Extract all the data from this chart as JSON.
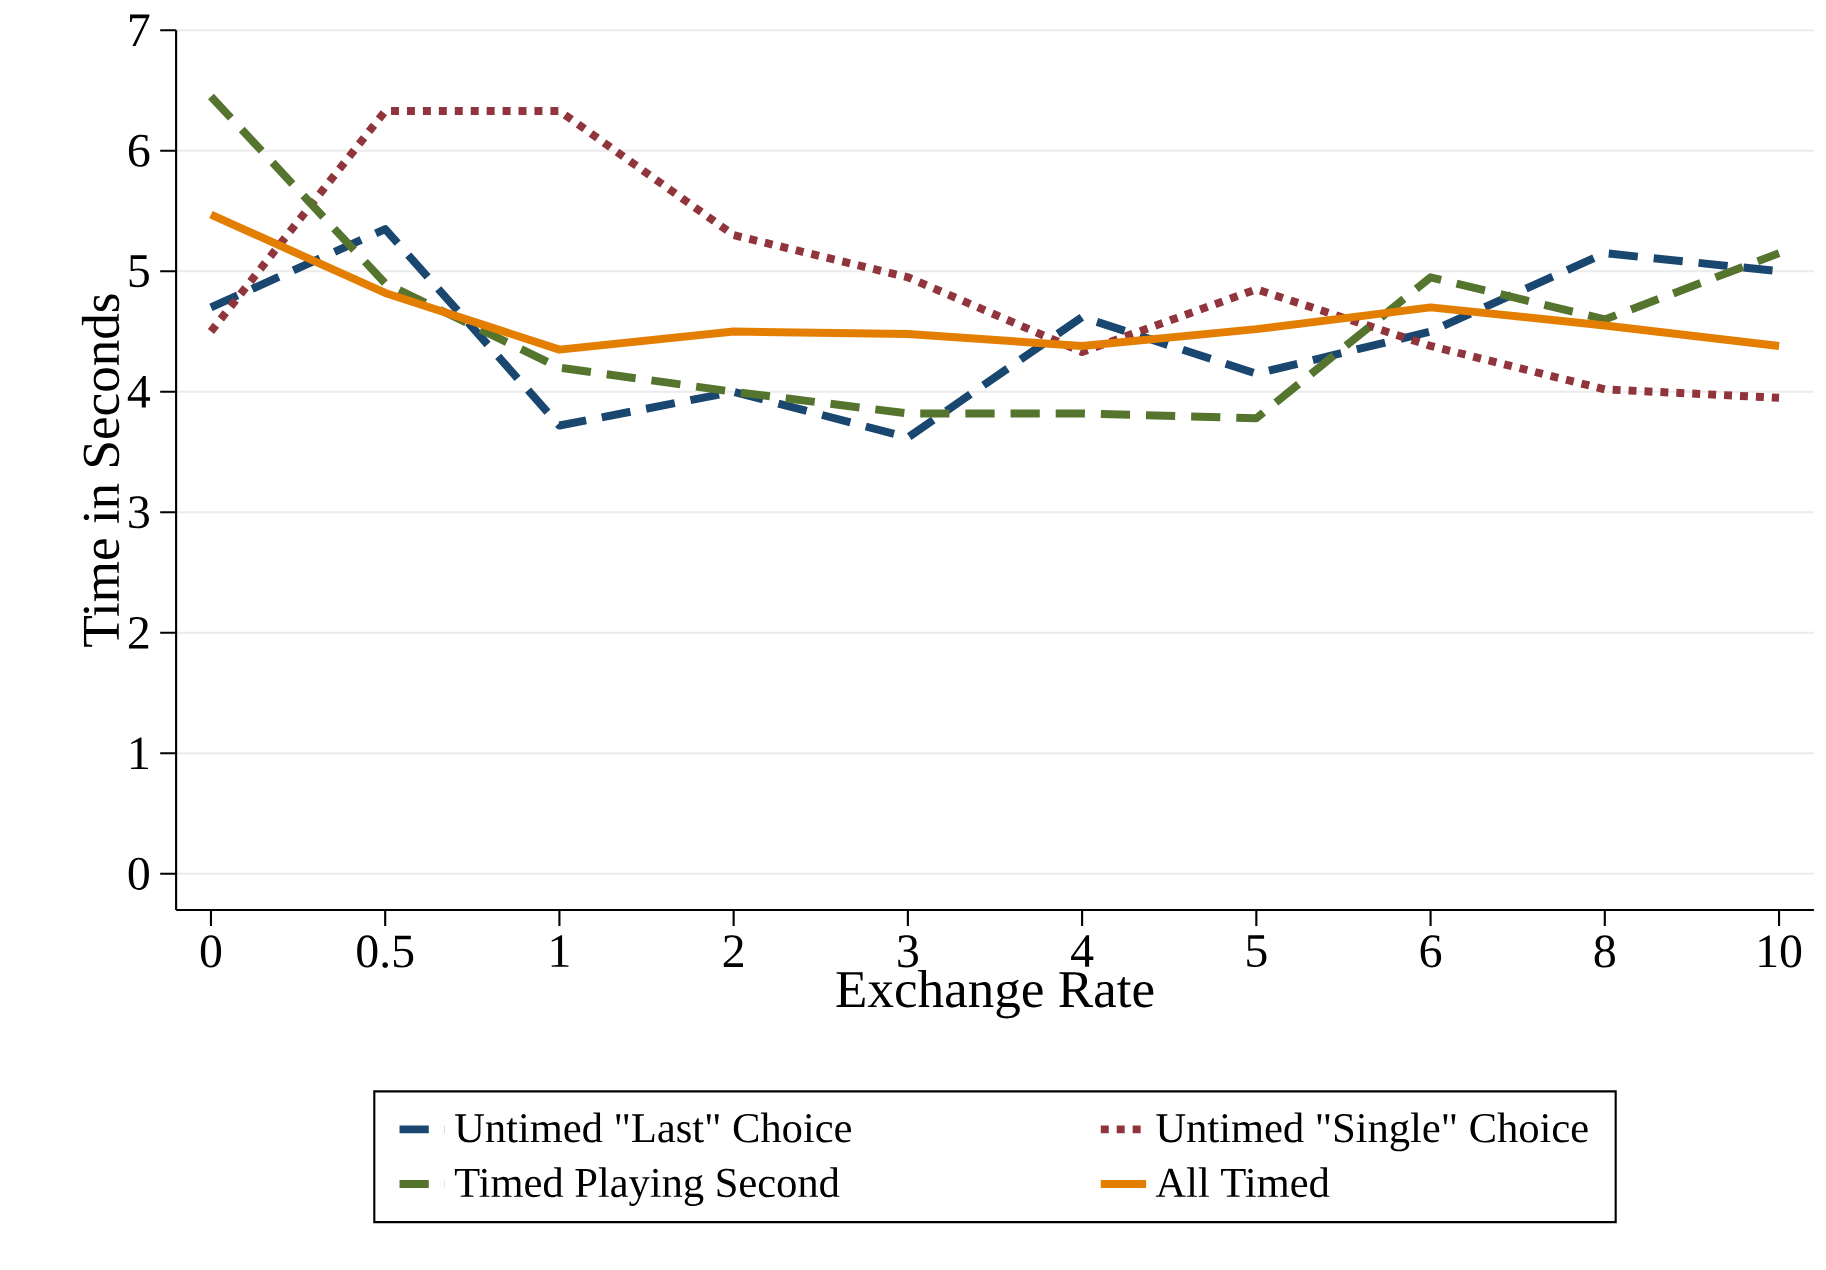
{
  "chart_data": {
    "type": "line",
    "xlabel": "Exchange Rate",
    "ylabel": "Time in Seconds",
    "categories": [
      "0",
      "0.5",
      "1",
      "2",
      "3",
      "4",
      "5",
      "6",
      "8",
      "10"
    ],
    "series": [
      {
        "name": "Untimed \"Last\" Choice",
        "color": "#1a476f",
        "line_style": "dashed",
        "values": [
          4.7,
          5.35,
          3.72,
          4.0,
          3.62,
          4.62,
          4.15,
          4.5,
          5.15,
          5.0
        ]
      },
      {
        "name": "Untimed \"Single\" Choice",
        "color": "#90353b",
        "line_style": "dotted",
        "values": [
          4.5,
          6.33,
          6.33,
          5.3,
          4.95,
          4.33,
          4.85,
          4.38,
          4.02,
          3.95
        ]
      },
      {
        "name": "Timed Playing Second",
        "color": "#55752f",
        "line_style": "dashed",
        "values": [
          6.45,
          4.9,
          4.2,
          4.0,
          3.82,
          3.82,
          3.78,
          4.95,
          4.6,
          5.15
        ]
      },
      {
        "name": "All Timed",
        "color": "#e37e00",
        "line_style": "solid",
        "values": [
          5.47,
          4.82,
          4.35,
          4.5,
          4.48,
          4.38,
          4.52,
          4.7,
          4.55,
          4.38
        ]
      }
    ],
    "ylim": [
      -0.3,
      7
    ],
    "yticks": [
      0,
      1,
      2,
      3,
      4,
      5,
      6,
      7
    ],
    "grid": "y",
    "legend": "bottom",
    "marker": "none"
  }
}
